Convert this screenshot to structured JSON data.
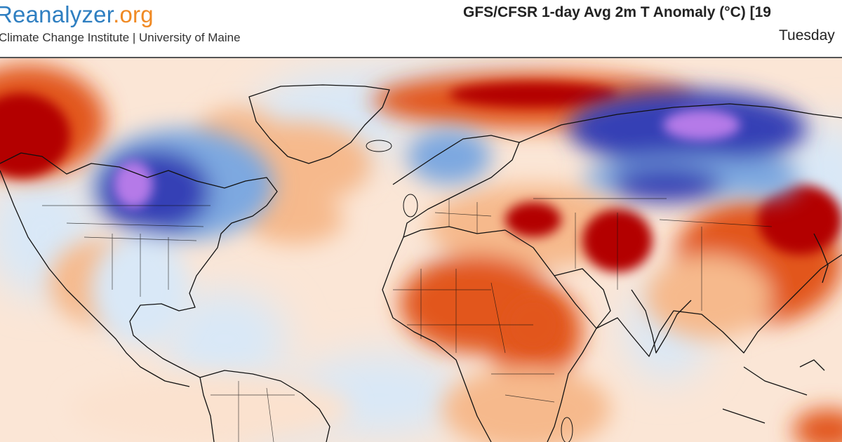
{
  "header": {
    "brand_main": "Reanalyzer",
    "brand_tld": ".org",
    "brand_subtitle": "Climate Change Institute | University of Maine",
    "map_title": "GFS/CFSR 1-day Avg 2m T Anomaly (°C) [19",
    "map_date": "Tuesday"
  },
  "colors": {
    "warm_strong": "#b30000",
    "warm": "#e2561c",
    "warm_light": "#f6b98c",
    "warm_pale": "#fbe2cf",
    "neutral": "#ffffff",
    "cool_pale": "#d9e8f7",
    "cool": "#7da8e0",
    "cool_strong": "#3640b5",
    "cold_extreme": "#b57ae8",
    "coastline": "#111111"
  }
}
